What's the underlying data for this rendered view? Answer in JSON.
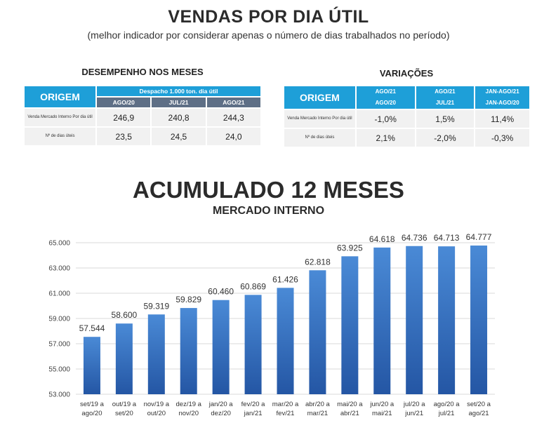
{
  "header": {
    "title": "VENDAS POR DIA ÚTIL",
    "subtitle": "(melhor indicador por considerar apenas o número de dias trabalhados no período)"
  },
  "desempenho": {
    "title": "DESEMPENHO NOS MESES",
    "origem": "ORIGEM",
    "group_header": "Despacho 1.000 ton. dia útil",
    "columns": [
      "AGO/20",
      "JUL/21",
      "AGO/21"
    ],
    "rows": [
      {
        "label": "Venda Mercado Interno Por dia útil",
        "values": [
          "246,9",
          "240,8",
          "244,3"
        ]
      },
      {
        "label": "Nº de dias úteis",
        "values": [
          "23,5",
          "24,5",
          "24,0"
        ]
      }
    ]
  },
  "variacoes": {
    "title": "VARIAÇÕES",
    "origem": "ORIGEM",
    "columns": [
      {
        "top": "AGO/21",
        "bottom": "AGO/20"
      },
      {
        "top": "AGO/21",
        "bottom": "JUL/21"
      },
      {
        "top": "JAN-AGO/21",
        "bottom": "JAN-AGO/20"
      }
    ],
    "rows": [
      {
        "label": "Venda Mercado Interno Por dia útil",
        "values": [
          "-1,0%",
          "1,5%",
          "11,4%"
        ]
      },
      {
        "label": "Nº de dias úteis",
        "values": [
          "2,1%",
          "-2,0%",
          "-0,3%"
        ]
      }
    ]
  },
  "chart_header": {
    "title": "ACUMULADO 12 MESES",
    "subtitle": "MERCADO INTERNO"
  },
  "chart_data": {
    "type": "bar",
    "title": "ACUMULADO 12 MESES",
    "subtitle": "MERCADO INTERNO",
    "categories": [
      [
        "set/19 a",
        "ago/20"
      ],
      [
        "out/19 a",
        "set/20"
      ],
      [
        "nov/19 a",
        "out/20"
      ],
      [
        "dez/19 a",
        "nov/20"
      ],
      [
        "jan/20 a",
        "dez/20"
      ],
      [
        "fev/20 a",
        "jan/21"
      ],
      [
        "mar/20 a",
        "fev/21"
      ],
      [
        "abr/20 a",
        "mar/21"
      ],
      [
        "mai/20 a",
        "abr/21"
      ],
      [
        "jun/20 a",
        "mai/21"
      ],
      [
        "jul/20 a",
        "jun/21"
      ],
      [
        "ago/20 a",
        "jul/21"
      ],
      [
        "set/20 a",
        "ago/21"
      ]
    ],
    "values": [
      57544,
      58600,
      59319,
      59829,
      60460,
      60869,
      61426,
      62818,
      63925,
      64618,
      64736,
      64713,
      64777
    ],
    "value_labels": [
      "57.544",
      "58.600",
      "59.319",
      "59.829",
      "60.460",
      "60.869",
      "61.426",
      "62.818",
      "63.925",
      "64.618",
      "64.736",
      "64.713",
      "64.777"
    ],
    "ylim": [
      53000,
      65000
    ],
    "yticks": [
      53000,
      55000,
      57000,
      59000,
      61000,
      63000,
      65000
    ],
    "ytick_labels": [
      "53.000",
      "55.000",
      "57.000",
      "59.000",
      "61.000",
      "63.000",
      "65.000"
    ],
    "grid": true,
    "bar_color_top": "#4a8ad6",
    "bar_color_bottom": "#2456a4"
  }
}
